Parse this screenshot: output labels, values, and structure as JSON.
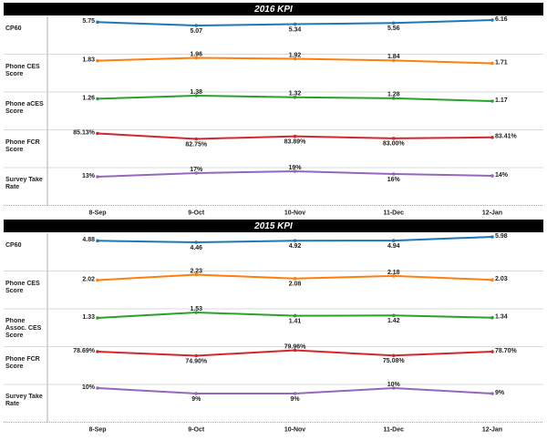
{
  "chart_data": [
    {
      "type": "line",
      "title": "2016 KPI",
      "categories": [
        "8-Sep",
        "9-Oct",
        "10-Nov",
        "11-Dec",
        "12-Jan"
      ],
      "series": [
        {
          "name": "CP60",
          "color": "#1f77b4",
          "values": [
            5.75,
            5.07,
            5.34,
            5.56,
            6.16
          ]
        },
        {
          "name": "Phone CES Score",
          "color": "#ff7f0e",
          "values": [
            1.83,
            1.96,
            1.92,
            1.84,
            1.71
          ]
        },
        {
          "name": "Phone aCES Score",
          "color": "#2ca02c",
          "values": [
            1.26,
            1.38,
            1.32,
            1.28,
            1.17
          ]
        },
        {
          "name": "Phone FCR Score",
          "color": "#d62728",
          "values": [
            85.13,
            82.75,
            83.89,
            83.0,
            83.41
          ],
          "value_labels": [
            "85.13%",
            "82.75%",
            "83.89%",
            "83.00%",
            "83.41%"
          ]
        },
        {
          "name": "Survey Take Rate",
          "color": "#9467bd",
          "values": [
            13,
            17,
            19,
            16,
            14
          ],
          "value_labels": [
            "13%",
            "17%",
            "19%",
            "16%",
            "14%"
          ]
        }
      ]
    },
    {
      "type": "line",
      "title": "2015 KPI",
      "categories": [
        "8-Sep",
        "9-Oct",
        "10-Nov",
        "11-Dec",
        "12-Jan"
      ],
      "series": [
        {
          "name": "CP60",
          "color": "#1f77b4",
          "values": [
            4.88,
            4.46,
            4.92,
            4.94,
            5.98
          ]
        },
        {
          "name": "Phone CES Score",
          "color": "#ff7f0e",
          "values": [
            2.02,
            2.23,
            2.08,
            2.18,
            2.03
          ]
        },
        {
          "name": "Phone Assoc. CES Score",
          "color": "#2ca02c",
          "values": [
            1.33,
            1.53,
            1.41,
            1.42,
            1.34
          ]
        },
        {
          "name": "Phone FCR Score",
          "color": "#d62728",
          "values": [
            78.69,
            74.9,
            79.96,
            75.08,
            78.7
          ],
          "value_labels": [
            "78.69%",
            "74.90%",
            "79.96%",
            "75.08%",
            "78.70%"
          ]
        },
        {
          "name": "Survey Take Rate",
          "color": "#9467bd",
          "values": [
            10,
            9,
            9,
            10,
            9
          ],
          "value_labels": [
            "10%",
            "9%",
            "9%",
            "10%",
            "9%"
          ]
        }
      ]
    }
  ]
}
